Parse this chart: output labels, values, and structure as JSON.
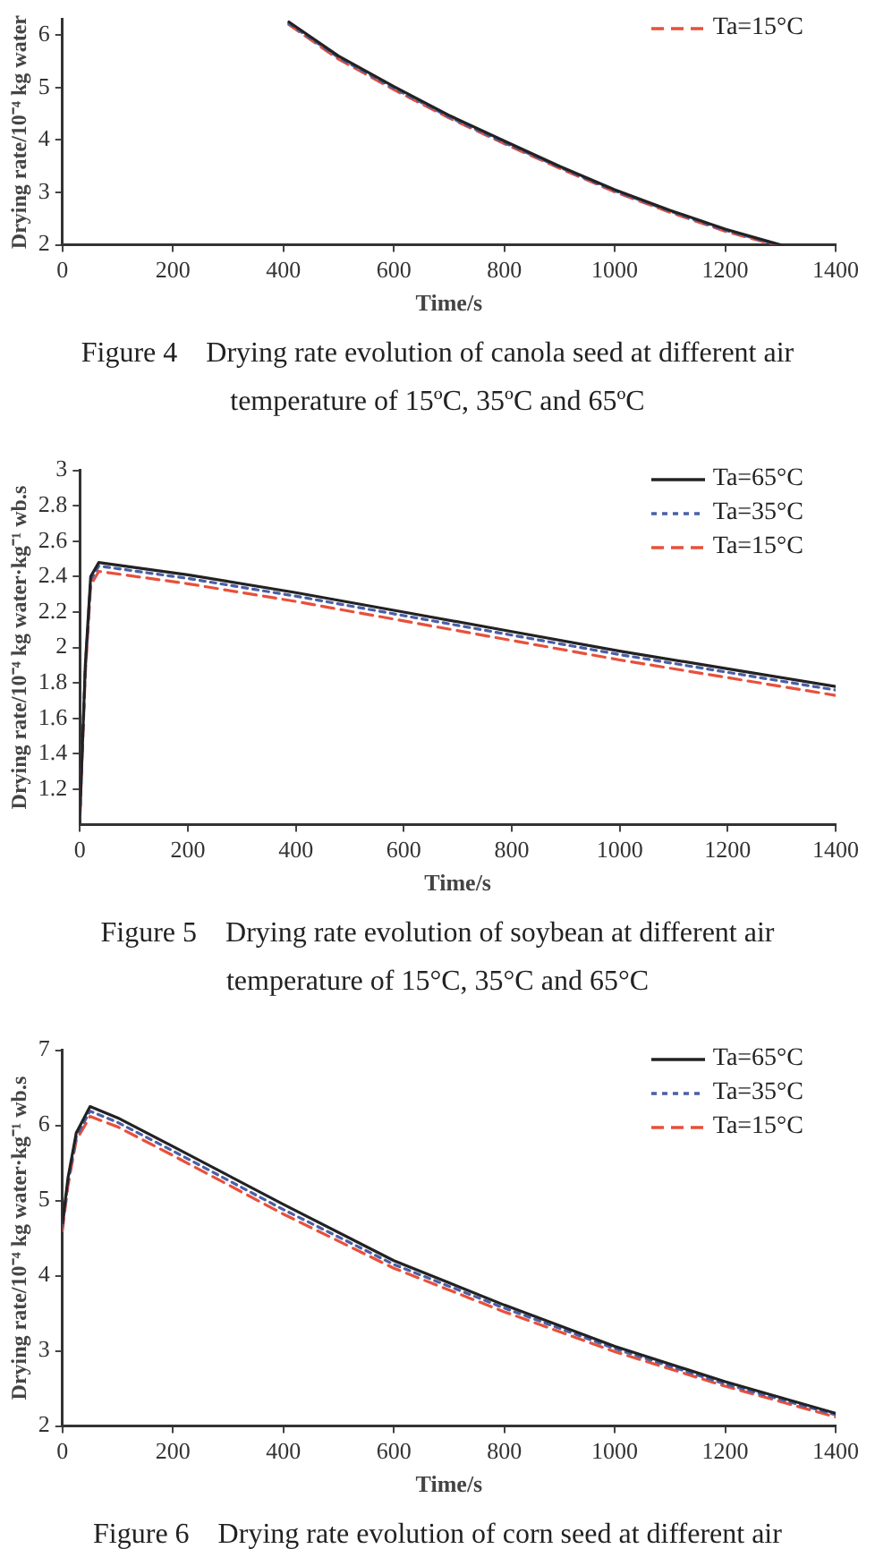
{
  "chart_data": [
    {
      "type": "line",
      "title": "Figure 4    Drying rate evolution of canola seed at different air temperature of 15ºC, 35ºC and 65ºC",
      "xlabel": "Time/s",
      "ylabel": "Drying rate/10⁻⁴ kg water",
      "xlim": [
        0,
        1400
      ],
      "xticks": [
        0,
        200,
        400,
        600,
        800,
        1000,
        1200,
        1400
      ],
      "ylim": [
        2,
        6.3
      ],
      "yticks": [
        2,
        3,
        4,
        5,
        6
      ],
      "legend": "top right",
      "x": [
        410,
        500,
        600,
        700,
        800,
        900,
        1000,
        1100,
        1200,
        1300
      ],
      "series": [
        {
          "color": "#222222",
          "line_style": "solid",
          "values": [
            6.25,
            5.6,
            5.02,
            4.47,
            3.98,
            3.5,
            3.05,
            2.66,
            2.3,
            2.0
          ]
        },
        {
          "color": "#4a5fa8",
          "line_style": "dotted",
          "x": [
            410,
            500,
            600,
            700,
            800,
            900,
            1000,
            1100,
            1200,
            1295
          ],
          "values": [
            6.22,
            5.57,
            4.99,
            4.44,
            3.95,
            3.48,
            3.03,
            2.64,
            2.28,
            2.0
          ]
        },
        {
          "name": "Ta=15°C",
          "color": "#e8503a",
          "line_style": "dashed",
          "x": [
            410,
            500,
            600,
            700,
            800,
            900,
            1000,
            1100,
            1200,
            1290
          ],
          "values": [
            6.2,
            5.54,
            4.96,
            4.42,
            3.93,
            3.46,
            3.01,
            2.62,
            2.26,
            2.0
          ]
        }
      ]
    },
    {
      "type": "line",
      "title": "Figure 5    Drying rate evolution of soybean at different air temperature of 15°C, 35°C and 65°C",
      "xlabel": "Time/s",
      "ylabel": "Drying rate/10⁻⁴ kg water·kg⁻¹ wb.s",
      "xlim": [
        0,
        1400
      ],
      "xticks": [
        0,
        200,
        400,
        600,
        800,
        1000,
        1200,
        1400
      ],
      "ylim": [
        1.0,
        3.0
      ],
      "yticks": [
        1.2,
        1.4,
        1.6,
        1.8,
        2.0,
        2.2,
        2.4,
        2.6,
        2.8,
        3.0
      ],
      "legend": "top right",
      "x": [
        0,
        10,
        20,
        35,
        200,
        400,
        600,
        800,
        1000,
        1200,
        1400
      ],
      "series": [
        {
          "name": "Ta=65°C",
          "color": "#222222",
          "line_style": "solid",
          "values": [
            1.05,
            1.9,
            2.4,
            2.48,
            2.41,
            2.31,
            2.2,
            2.09,
            1.98,
            1.88,
            1.78
          ]
        },
        {
          "name": "Ta=35°C",
          "color": "#4a5fa8",
          "line_style": "dotted",
          "values": [
            1.05,
            1.88,
            2.38,
            2.46,
            2.39,
            2.29,
            2.18,
            2.07,
            1.96,
            1.86,
            1.76
          ]
        },
        {
          "name": "Ta=15°C",
          "color": "#e8503a",
          "line_style": "dashed",
          "values": [
            1.05,
            1.85,
            2.35,
            2.43,
            2.36,
            2.26,
            2.15,
            2.04,
            1.93,
            1.83,
            1.73
          ]
        }
      ]
    },
    {
      "type": "line",
      "title": "Figure 6    Drying rate evolution of corn seed at different air",
      "xlabel": "Time/s",
      "ylabel": "Drying rate/10⁻⁴ kg water·kg⁻¹ wb.s",
      "xlim": [
        0,
        1400
      ],
      "xticks": [
        0,
        200,
        400,
        600,
        800,
        1000,
        1200,
        1400
      ],
      "ylim": [
        2,
        7
      ],
      "yticks": [
        2,
        3,
        4,
        5,
        6,
        7
      ],
      "legend": "top right",
      "x": [
        0,
        10,
        25,
        50,
        100,
        200,
        400,
        600,
        800,
        1000,
        1200,
        1400
      ],
      "series": [
        {
          "name": "Ta=65°C",
          "color": "#222222",
          "line_style": "solid",
          "values": [
            4.7,
            5.3,
            5.9,
            6.25,
            6.1,
            5.72,
            4.95,
            4.2,
            3.61,
            3.06,
            2.59,
            2.17
          ]
        },
        {
          "name": "Ta=35°C",
          "color": "#4a5fa8",
          "line_style": "dotted",
          "values": [
            4.65,
            5.25,
            5.85,
            6.19,
            6.04,
            5.66,
            4.88,
            4.15,
            3.57,
            3.03,
            2.56,
            2.15
          ]
        },
        {
          "name": "Ta=15°C",
          "color": "#e8503a",
          "line_style": "dashed",
          "values": [
            4.6,
            5.2,
            5.8,
            6.12,
            5.98,
            5.6,
            4.82,
            4.1,
            3.52,
            2.99,
            2.53,
            2.12
          ]
        }
      ]
    }
  ]
}
